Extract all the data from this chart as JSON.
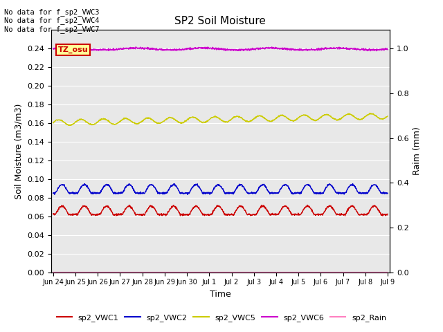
{
  "title": "SP2 Soil Moisture",
  "xlabel": "Time",
  "ylabel_left": "Soil Moisture (m3/m3)",
  "ylabel_right": "Raim (mm)",
  "no_data_lines": [
    "No data for f_sp2_VWC3",
    "No data for f_sp2_VWC4",
    "No data for f_sp2_VWC7"
  ],
  "tz_label": "TZ_osu",
  "ylim_left": [
    0.0,
    0.26
  ],
  "ylim_right": [
    0.0,
    1.0833
  ],
  "yticks_left": [
    0.0,
    0.02,
    0.04,
    0.06,
    0.08,
    0.1,
    0.12,
    0.14,
    0.16,
    0.18,
    0.2,
    0.22,
    0.24
  ],
  "yticks_right": [
    0.0,
    0.2,
    0.4,
    0.6,
    0.8,
    1.0
  ],
  "x_tick_labels": [
    "Jun 24",
    "Jun 25",
    "Jun 26",
    "Jun 27",
    "Jun 28",
    "Jun 29",
    "Jun 30",
    "Jul 1",
    "Jul 2",
    "Jul 3",
    "Jul 4",
    "Jul 5",
    "Jul 6",
    "Jul 7",
    "Jul 8",
    "Jul 9"
  ],
  "background_color": "#e8e8e8",
  "grid_color": "#ffffff",
  "colors": {
    "sp2_VWC1": "#cc0000",
    "sp2_VWC2": "#0000cc",
    "sp2_VWC5": "#cccc00",
    "sp2_VWC6": "#cc00cc",
    "sp2_Rain": "#ff80c0"
  },
  "n_points": 1440,
  "vwc1_base": 0.064,
  "vwc1_amp": 0.007,
  "vwc2_base": 0.087,
  "vwc2_amp": 0.007,
  "vwc5_base": 0.1605,
  "vwc5_amp": 0.003,
  "vwc5_trend": 0.007,
  "vwc6_value": 0.2395,
  "vwc6_noise": 0.0005,
  "period_days": 1.0,
  "total_days": 15
}
